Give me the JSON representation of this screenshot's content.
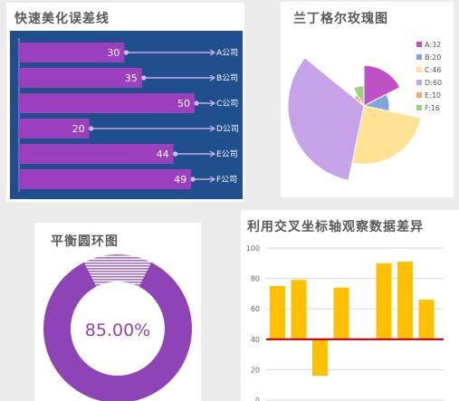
{
  "colors": {
    "navy": "#1f4f8c",
    "bar_purple": "#9b3fbf",
    "bar_yellow": "#ffc000",
    "baseline_red": "#c00000",
    "donut_purple": "#8e44b6",
    "grid": "#d9d9d9"
  },
  "chart_data": [
    {
      "id": "error-bars",
      "type": "bar",
      "title": "快速美化误差线",
      "orientation": "horizontal",
      "categories": [
        "A公司",
        "B公司",
        "C公司",
        "D公司",
        "E公司",
        "F公司"
      ],
      "values": [
        30,
        35,
        50,
        20,
        44,
        49
      ],
      "xlim": [
        0,
        72
      ]
    },
    {
      "id": "nightingale-rose",
      "type": "pie",
      "subtype": "rose",
      "title": "兰丁格尔玫瑰图",
      "categories": [
        "A",
        "B",
        "C",
        "D",
        "E",
        "F"
      ],
      "values": [
        32,
        20,
        46,
        60,
        10,
        16
      ],
      "legend": [
        "A:32",
        "B:20",
        "C:46",
        "D:60",
        "E:10",
        "F:16"
      ],
      "colors": [
        "#c050c8",
        "#7fa4de",
        "#ffe294",
        "#c6a3e8",
        "#f5a873",
        "#9fcf80"
      ],
      "legend_position": "right"
    },
    {
      "id": "balance-donut",
      "type": "pie",
      "subtype": "donut",
      "title": "平衡圆环图",
      "values": [
        85,
        15
      ],
      "label": "85.00%"
    },
    {
      "id": "cross-axis",
      "type": "bar",
      "title": "利用交叉坐标轴观察数据差异",
      "values": [
        75,
        79,
        16,
        74,
        null,
        90,
        91,
        66
      ],
      "baseline": 40,
      "ylim": [
        0,
        100
      ],
      "yticks": [
        "0",
        "20",
        "40",
        "60",
        "80",
        "100"
      ],
      "grid": true
    }
  ]
}
